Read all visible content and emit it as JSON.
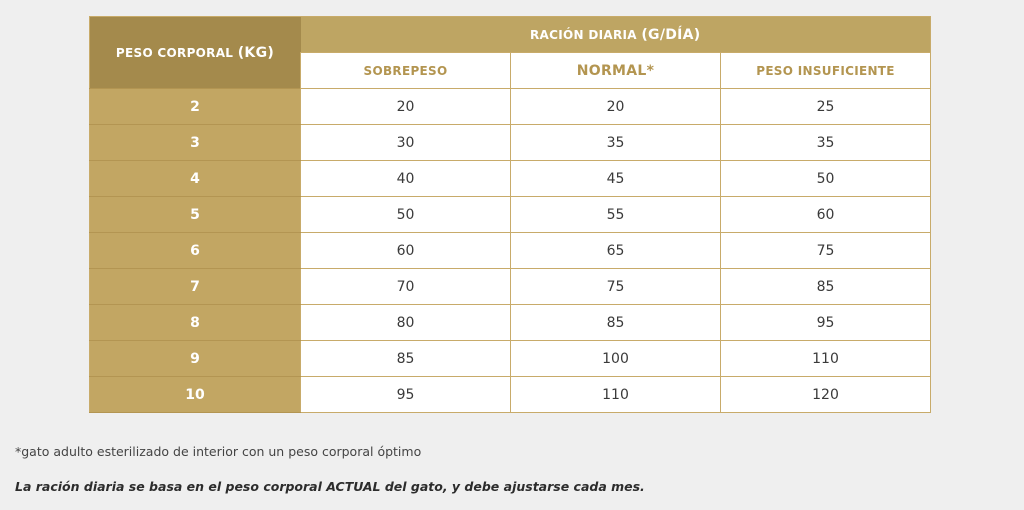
{
  "table": {
    "weight_header": "PESO CORPORAL",
    "weight_unit": "(KG)",
    "ration_header": "RACIÓN DIARIA",
    "ration_unit": "(G/DÍA)",
    "sub_headers": [
      "SOBREPESO",
      "NORMAL*",
      "PESO INSUFICIENTE"
    ],
    "rows": [
      {
        "weight": "2",
        "values": [
          "20",
          "20",
          "25"
        ]
      },
      {
        "weight": "3",
        "values": [
          "30",
          "35",
          "35"
        ]
      },
      {
        "weight": "4",
        "values": [
          "40",
          "45",
          "50"
        ]
      },
      {
        "weight": "5",
        "values": [
          "50",
          "55",
          "60"
        ]
      },
      {
        "weight": "6",
        "values": [
          "60",
          "65",
          "75"
        ]
      },
      {
        "weight": "7",
        "values": [
          "70",
          "75",
          "85"
        ]
      },
      {
        "weight": "8",
        "values": [
          "80",
          "85",
          "95"
        ]
      },
      {
        "weight": "9",
        "values": [
          "85",
          "100",
          "110"
        ]
      },
      {
        "weight": "10",
        "values": [
          "95",
          "110",
          "120"
        ]
      }
    ]
  },
  "note": "*gato adulto esterilizado de interior con un peso corporal óptimo",
  "footer": "La ración diaria se basa en el peso corporal ACTUAL del gato, y debe ajustarse cada mes.",
  "colors": {
    "header_dark": "#a48a4c",
    "header_gold": "#bea563",
    "weight_cell": "#c2a663",
    "subheader_text": "#b39550",
    "background": "#efefef"
  }
}
